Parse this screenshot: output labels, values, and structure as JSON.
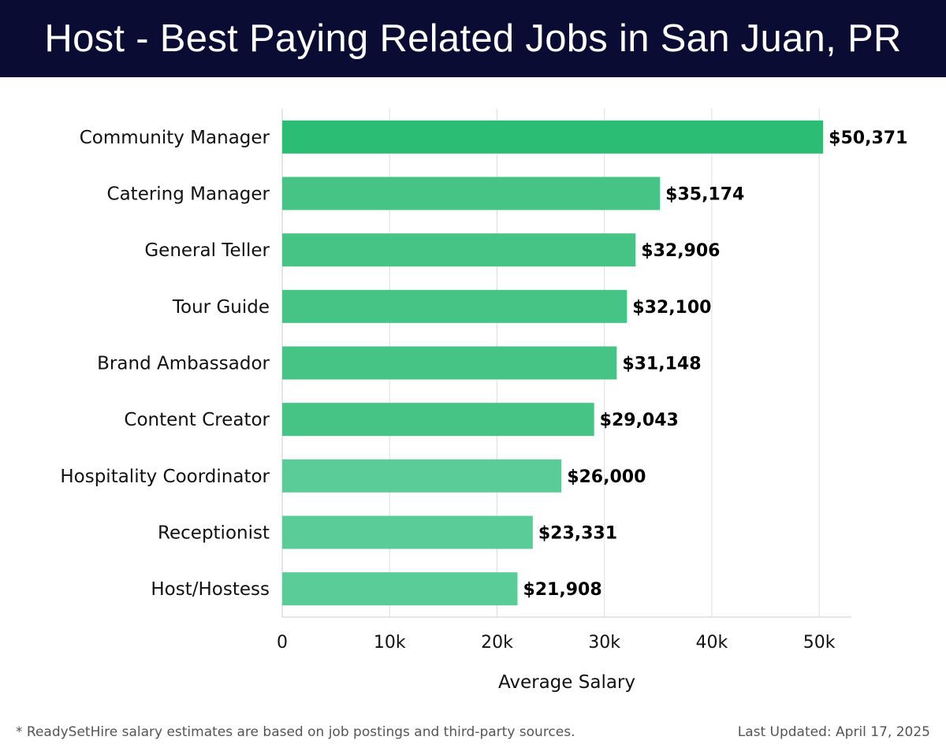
{
  "header": {
    "title": "Host - Best Paying Related Jobs in San Juan, PR"
  },
  "footer": {
    "note": "* ReadySetHire salary estimates are based on job postings and third-party sources.",
    "updated": "Last Updated: April 17, 2025"
  },
  "colors": {
    "header_bg": "#0b0c33",
    "bar_top": "#2bbd74",
    "bar_mid": "#45c486",
    "bar_low": "#5acc98",
    "grid": "#dddddd"
  },
  "chart_data": {
    "type": "bar",
    "orientation": "horizontal",
    "title": "Host - Best Paying Related Jobs in San Juan, PR",
    "xlabel": "Average Salary",
    "ylabel": "",
    "xlim": [
      0,
      53000
    ],
    "xticks": [
      0,
      10000,
      20000,
      30000,
      40000,
      50000
    ],
    "xtick_labels": [
      "0",
      "10k",
      "20k",
      "30k",
      "40k",
      "50k"
    ],
    "grid": true,
    "categories": [
      "Community Manager",
      "Catering Manager",
      "General Teller",
      "Tour Guide",
      "Brand Ambassador",
      "Content Creator",
      "Hospitality Coordinator",
      "Receptionist",
      "Host/Hostess"
    ],
    "values": [
      50371,
      35174,
      32906,
      32100,
      31148,
      29043,
      26000,
      23331,
      21908
    ],
    "value_labels": [
      "$50,371",
      "$35,174",
      "$32,906",
      "$32,100",
      "$31,148",
      "$29,043",
      "$26,000",
      "$23,331",
      "$21,908"
    ]
  }
}
